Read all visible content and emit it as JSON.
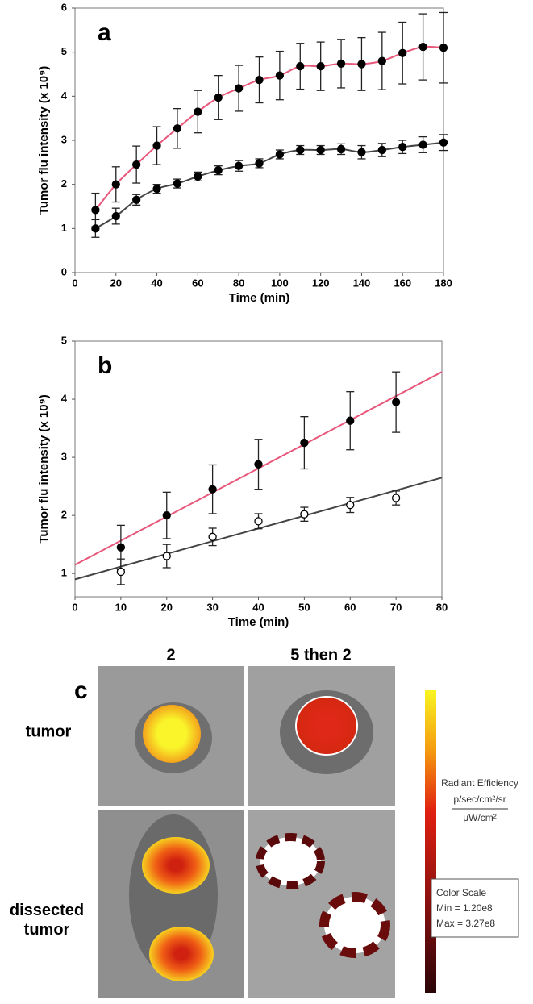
{
  "chart_data": [
    {
      "type": "scatter",
      "panel": "a",
      "x_label": "Time (min)",
      "y_label": "Tumor flu intensity (x 10⁹)",
      "xlim": [
        0,
        180
      ],
      "xticks": [
        0,
        20,
        40,
        60,
        80,
        100,
        120,
        140,
        160,
        180
      ],
      "ylim": [
        0,
        6
      ],
      "yticks": [
        0,
        1,
        2,
        3,
        4,
        5,
        6
      ],
      "series": [
        {
          "line_color": "#e8577a",
          "marker_color": "#000000",
          "marker": "filled",
          "x": [
            10,
            20,
            30,
            40,
            50,
            60,
            70,
            80,
            90,
            100,
            110,
            120,
            130,
            140,
            150,
            160,
            170,
            180
          ],
          "values": [
            1.42,
            2.0,
            2.45,
            2.88,
            3.27,
            3.65,
            3.97,
            4.18,
            4.37,
            4.47,
            4.68,
            4.68,
            4.74,
            4.73,
            4.8,
            4.98,
            5.12,
            5.1
          ],
          "errors": [
            0.38,
            0.4,
            0.42,
            0.43,
            0.45,
            0.48,
            0.5,
            0.52,
            0.52,
            0.55,
            0.52,
            0.55,
            0.55,
            0.6,
            0.65,
            0.7,
            0.75,
            0.8
          ]
        },
        {
          "line_color": "#444444",
          "marker_color": "#000000",
          "marker": "filled",
          "x": [
            10,
            20,
            30,
            40,
            50,
            60,
            70,
            80,
            90,
            100,
            110,
            120,
            130,
            140,
            150,
            160,
            170,
            180
          ],
          "values": [
            1.0,
            1.28,
            1.65,
            1.9,
            2.02,
            2.18,
            2.32,
            2.42,
            2.48,
            2.68,
            2.78,
            2.78,
            2.8,
            2.73,
            2.78,
            2.85,
            2.9,
            2.95
          ],
          "errors": [
            0.2,
            0.18,
            0.12,
            0.1,
            0.1,
            0.1,
            0.1,
            0.12,
            0.1,
            0.1,
            0.1,
            0.1,
            0.12,
            0.15,
            0.15,
            0.15,
            0.18,
            0.18
          ]
        }
      ]
    },
    {
      "type": "scatter",
      "panel": "b",
      "x_label": "Time (min)",
      "y_label": "Tumor flu intensity (x 10⁹)",
      "xlim": [
        0,
        80
      ],
      "xticks": [
        0,
        10,
        20,
        30,
        40,
        50,
        60,
        70,
        80
      ],
      "ylim": [
        0.6,
        5
      ],
      "yticks": [
        1,
        2,
        3,
        4,
        5
      ],
      "series": [
        {
          "marker_color": "#000000",
          "marker": "filled",
          "x": [
            10,
            20,
            30,
            40,
            50,
            60,
            70
          ],
          "values": [
            1.45,
            2.0,
            2.45,
            2.88,
            3.25,
            3.63,
            3.95
          ],
          "errors": [
            0.38,
            0.4,
            0.42,
            0.43,
            0.45,
            0.5,
            0.52
          ]
        },
        {
          "marker_color": "#000000",
          "marker": "open",
          "x": [
            10,
            20,
            30,
            40,
            50,
            60,
            70
          ],
          "values": [
            1.03,
            1.3,
            1.63,
            1.9,
            2.02,
            2.18,
            2.3
          ],
          "errors": [
            0.22,
            0.2,
            0.15,
            0.13,
            0.12,
            0.13,
            0.12
          ]
        }
      ],
      "trendlines": [
        {
          "color": "#e8577a",
          "x": [
            0,
            80
          ],
          "values": [
            1.15,
            4.47
          ]
        },
        {
          "color": "#444444",
          "x": [
            0,
            80
          ],
          "values": [
            0.9,
            2.65
          ]
        }
      ]
    }
  ],
  "panel_c": {
    "label": "c",
    "columns": [
      "2",
      "5 then 2"
    ],
    "rows": [
      "tumor",
      "dissected\ntumor"
    ],
    "colorbar": {
      "title": "Radiant Efficiency",
      "numerator": "p/sec/cm²/sr",
      "denominator": "μW/cm²",
      "box_title": "Color Scale",
      "min": "Min = 1.20e8",
      "max": "Max = 3.27e8"
    }
  }
}
